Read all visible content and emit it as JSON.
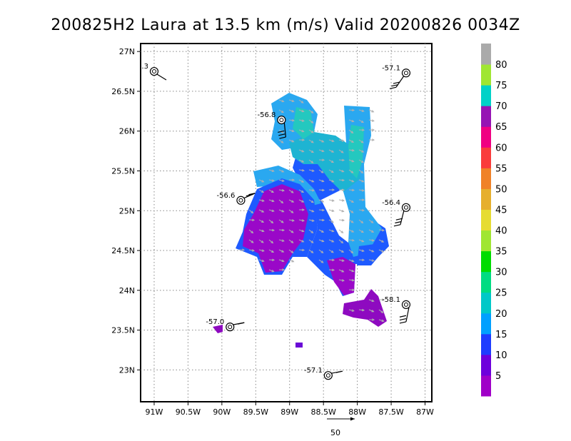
{
  "chart_data": {
    "type": "scatter",
    "title": "200825H2 Laura at 13.5 km (m/s) Valid 20200826 0034Z",
    "xlabel": "",
    "ylabel": "",
    "xlim": [
      -91.2,
      -86.9
    ],
    "ylim": [
      22.6,
      27.1
    ],
    "x_ticks": [
      "91W",
      "90.5W",
      "90W",
      "89.5W",
      "89W",
      "88.5W",
      "88W",
      "87.5W",
      "87W"
    ],
    "x_tick_values": [
      -91.0,
      -90.5,
      -90.0,
      -89.5,
      -89.0,
      -88.5,
      -88.0,
      -87.5,
      -87.0
    ],
    "y_ticks": [
      "23N",
      "23.5N",
      "24N",
      "24.5N",
      "25N",
      "25.5N",
      "26N",
      "26.5N",
      "27N"
    ],
    "y_tick_values": [
      23.0,
      23.5,
      24.0,
      24.5,
      25.0,
      25.5,
      26.0,
      26.5,
      27.0
    ],
    "grid": true,
    "reference_vector_label": "50",
    "colorbar": {
      "labels": [
        "5",
        "10",
        "15",
        "20",
        "25",
        "30",
        "35",
        "40",
        "45",
        "50",
        "55",
        "60",
        "65",
        "70",
        "75",
        "80"
      ],
      "colors": [
        "#a000c8",
        "#6e00dc",
        "#1e3cff",
        "#00a0ff",
        "#00c8c8",
        "#00dc82",
        "#00dc00",
        "#a0e632",
        "#e6dc32",
        "#e6af2d",
        "#f08228",
        "#fa3c3c",
        "#f00082",
        "#9614b4",
        "#00d2c8",
        "#a0e632",
        "#aaaaaa"
      ]
    },
    "dropsondes": [
      {
        "label": ".3",
        "lon": -91.0,
        "lat": 26.75
      },
      {
        "label": "-57.1",
        "lon": -87.28,
        "lat": 26.73
      },
      {
        "label": "-56.8",
        "lon": -89.12,
        "lat": 26.14
      },
      {
        "label": "-56.6",
        "lon": -89.72,
        "lat": 25.13
      },
      {
        "label": "-56.4",
        "lon": -87.28,
        "lat": 25.04
      },
      {
        "label": "-58.1",
        "lon": -87.28,
        "lat": 23.82
      },
      {
        "label": "-57.0",
        "lon": -89.88,
        "lat": 23.54
      },
      {
        "label": "-57.1",
        "lon": -88.43,
        "lat": 22.93
      }
    ]
  }
}
